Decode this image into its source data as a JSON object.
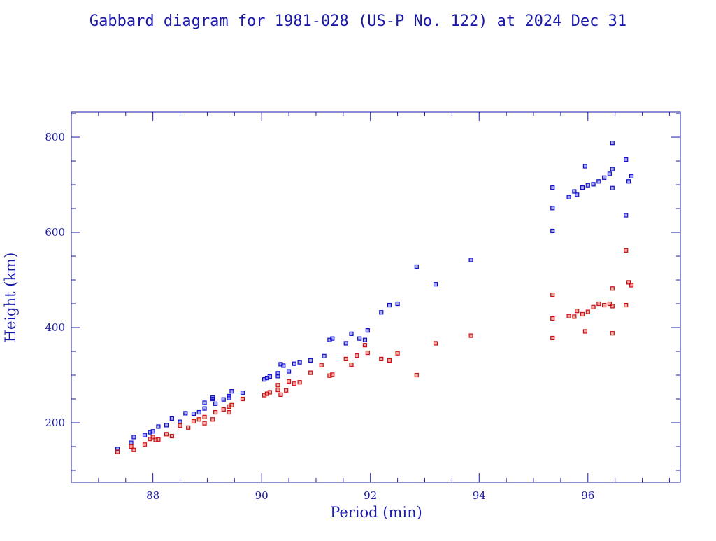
{
  "chart_data": {
    "type": "scatter",
    "title": "Gabbard diagram for 1981-028 (US-P No. 122) at 2024 Dec 31",
    "xlabel": "Period (min)",
    "ylabel": "Height (km)",
    "xlim": [
      86.5,
      97.7
    ],
    "ylim": [
      75,
      853
    ],
    "x_ticks": [
      88,
      90,
      92,
      94,
      96
    ],
    "y_ticks": [
      200,
      400,
      600,
      800
    ],
    "grid": false,
    "colors": {
      "axes": "#1a1aa6",
      "apogee": "#1111cc",
      "perigee": "#cc1111"
    },
    "series": [
      {
        "color": "#1111cc",
        "marker": "square",
        "points": [
          [
            87.35,
            145
          ],
          [
            87.6,
            158
          ],
          [
            87.65,
            170
          ],
          [
            87.85,
            174
          ],
          [
            87.95,
            180
          ],
          [
            88.0,
            182
          ],
          [
            88.1,
            192
          ],
          [
            88.25,
            195
          ],
          [
            88.35,
            209
          ],
          [
            88.5,
            202
          ],
          [
            88.6,
            220
          ],
          [
            88.75,
            219
          ],
          [
            88.85,
            222
          ],
          [
            88.95,
            230
          ],
          [
            88.95,
            242
          ],
          [
            89.1,
            250
          ],
          [
            89.15,
            240
          ],
          [
            89.1,
            253
          ],
          [
            89.3,
            249
          ],
          [
            89.4,
            252
          ],
          [
            89.4,
            256
          ],
          [
            89.45,
            266
          ],
          [
            89.65,
            263
          ],
          [
            90.05,
            291
          ],
          [
            90.1,
            294
          ],
          [
            90.15,
            297
          ],
          [
            90.3,
            304
          ],
          [
            90.3,
            298
          ],
          [
            90.35,
            323
          ],
          [
            90.4,
            320
          ],
          [
            90.5,
            308
          ],
          [
            90.6,
            324
          ],
          [
            90.7,
            327
          ],
          [
            90.9,
            331
          ],
          [
            91.15,
            340
          ],
          [
            91.25,
            374
          ],
          [
            91.3,
            377
          ],
          [
            91.55,
            367
          ],
          [
            91.65,
            387
          ],
          [
            91.8,
            377
          ],
          [
            91.9,
            374
          ],
          [
            91.95,
            394
          ],
          [
            92.2,
            432
          ],
          [
            92.35,
            447
          ],
          [
            92.5,
            450
          ],
          [
            92.85,
            528
          ],
          [
            93.2,
            491
          ],
          [
            93.85,
            542
          ],
          [
            95.35,
            603
          ],
          [
            95.35,
            651
          ],
          [
            95.35,
            694
          ],
          [
            95.65,
            674
          ],
          [
            95.75,
            686
          ],
          [
            95.8,
            679
          ],
          [
            95.9,
            694
          ],
          [
            95.95,
            739
          ],
          [
            96.0,
            699
          ],
          [
            96.1,
            701
          ],
          [
            96.2,
            707
          ],
          [
            96.3,
            715
          ],
          [
            96.4,
            723
          ],
          [
            96.45,
            733
          ],
          [
            96.45,
            693
          ],
          [
            96.45,
            788
          ],
          [
            96.7,
            636
          ],
          [
            96.7,
            753
          ],
          [
            96.75,
            707
          ],
          [
            96.8,
            718
          ]
        ]
      },
      {
        "color": "#cc1111",
        "marker": "square",
        "points": [
          [
            87.35,
            139
          ],
          [
            87.6,
            150
          ],
          [
            87.65,
            143
          ],
          [
            87.85,
            154
          ],
          [
            87.95,
            166
          ],
          [
            88.0,
            170
          ],
          [
            88.05,
            164
          ],
          [
            88.1,
            165
          ],
          [
            88.25,
            176
          ],
          [
            88.35,
            172
          ],
          [
            88.5,
            194
          ],
          [
            88.65,
            190
          ],
          [
            88.75,
            203
          ],
          [
            88.85,
            207
          ],
          [
            88.95,
            199
          ],
          [
            88.95,
            212
          ],
          [
            89.1,
            207
          ],
          [
            89.15,
            222
          ],
          [
            89.3,
            228
          ],
          [
            89.4,
            222
          ],
          [
            89.4,
            234
          ],
          [
            89.45,
            237
          ],
          [
            89.65,
            250
          ],
          [
            90.05,
            258
          ],
          [
            90.1,
            261
          ],
          [
            90.15,
            264
          ],
          [
            90.3,
            269
          ],
          [
            90.3,
            279
          ],
          [
            90.35,
            259
          ],
          [
            90.45,
            268
          ],
          [
            90.5,
            287
          ],
          [
            90.6,
            282
          ],
          [
            90.7,
            285
          ],
          [
            90.9,
            305
          ],
          [
            91.1,
            321
          ],
          [
            91.25,
            299
          ],
          [
            91.3,
            301
          ],
          [
            91.55,
            334
          ],
          [
            91.65,
            322
          ],
          [
            91.75,
            341
          ],
          [
            91.9,
            363
          ],
          [
            91.95,
            347
          ],
          [
            92.2,
            334
          ],
          [
            92.35,
            331
          ],
          [
            92.5,
            346
          ],
          [
            92.85,
            300
          ],
          [
            93.2,
            367
          ],
          [
            93.85,
            383
          ],
          [
            95.35,
            378
          ],
          [
            95.35,
            419
          ],
          [
            95.35,
            469
          ],
          [
            95.65,
            424
          ],
          [
            95.75,
            423
          ],
          [
            95.8,
            435
          ],
          [
            95.9,
            428
          ],
          [
            95.95,
            392
          ],
          [
            96.0,
            433
          ],
          [
            96.1,
            443
          ],
          [
            96.2,
            450
          ],
          [
            96.3,
            447
          ],
          [
            96.4,
            450
          ],
          [
            96.45,
            445
          ],
          [
            96.45,
            388
          ],
          [
            96.45,
            482
          ],
          [
            96.7,
            562
          ],
          [
            96.7,
            447
          ],
          [
            96.75,
            495
          ],
          [
            96.8,
            489
          ]
        ]
      }
    ]
  }
}
